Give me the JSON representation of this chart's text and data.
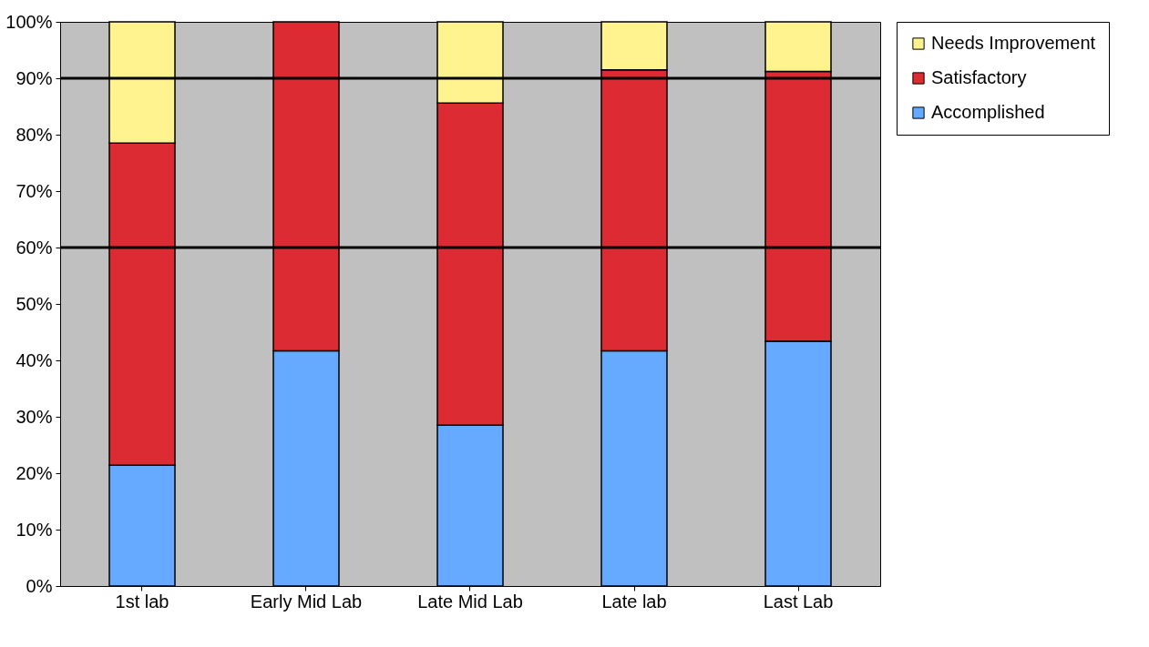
{
  "chart_data": {
    "type": "bar",
    "stacked": true,
    "categories": [
      "1st lab",
      "Early Mid Lab",
      "Late Mid Lab",
      "Late lab",
      "Last Lab"
    ],
    "series": [
      {
        "name": "Accomplished",
        "color": "#66aaff",
        "values": [
          21.4,
          41.7,
          28.5,
          41.7,
          43.4
        ]
      },
      {
        "name": "Satisfactory",
        "color": "#dd2b33",
        "values": [
          57.1,
          58.3,
          57.1,
          49.8,
          47.8
        ]
      },
      {
        "name": "Needs Improvement",
        "color": "#fff38f",
        "values": [
          21.5,
          0,
          14.4,
          8.5,
          8.8
        ]
      }
    ],
    "ylim": [
      0,
      100
    ],
    "yticks": [
      {
        "value": 0,
        "label": "0%"
      },
      {
        "value": 10,
        "label": "10%"
      },
      {
        "value": 20,
        "label": "20%"
      },
      {
        "value": 30,
        "label": "30%"
      },
      {
        "value": 40,
        "label": "40%"
      },
      {
        "value": 50,
        "label": "50%"
      },
      {
        "value": 60,
        "label": "60%"
      },
      {
        "value": 70,
        "label": "70%"
      },
      {
        "value": 80,
        "label": "80%"
      },
      {
        "value": 90,
        "label": "90%"
      },
      {
        "value": 100,
        "label": "100%"
      }
    ],
    "ref_lines": [
      {
        "axis": "y",
        "value": 60,
        "color": "#000000"
      },
      {
        "axis": "y",
        "value": 90,
        "color": "#000000"
      }
    ],
    "legend": "right"
  }
}
